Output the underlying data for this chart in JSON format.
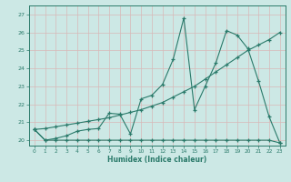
{
  "xlabel": "Humidex (Indice chaleur)",
  "bg_color": "#cce8e5",
  "grid_color": "#b8d8d5",
  "line_color": "#2a7a6a",
  "xlim": [
    -0.5,
    23.5
  ],
  "ylim": [
    19.7,
    27.5
  ],
  "xticks": [
    0,
    1,
    2,
    3,
    4,
    5,
    6,
    7,
    8,
    9,
    10,
    11,
    12,
    13,
    14,
    15,
    16,
    17,
    18,
    19,
    20,
    21,
    22,
    23
  ],
  "yticks": [
    20,
    21,
    22,
    23,
    24,
    25,
    26,
    27
  ],
  "s1_x": [
    0,
    1,
    2,
    3,
    4,
    5,
    6,
    7,
    8,
    9,
    10,
    11,
    12,
    13,
    14,
    15,
    16,
    17,
    18,
    19,
    20,
    21,
    22,
    23
  ],
  "s1_y": [
    20.6,
    20.0,
    20.0,
    20.0,
    20.0,
    20.0,
    20.0,
    20.0,
    20.0,
    20.0,
    20.0,
    20.0,
    20.0,
    20.0,
    20.0,
    20.0,
    20.0,
    20.0,
    20.0,
    20.0,
    20.0,
    20.0,
    20.0,
    19.85
  ],
  "s2_x": [
    0,
    1,
    2,
    3,
    4,
    5,
    6,
    7,
    8,
    9,
    10,
    11,
    12,
    13,
    14,
    15,
    16,
    17,
    18,
    19,
    20,
    21,
    22,
    23
  ],
  "s2_y": [
    20.6,
    20.65,
    20.75,
    20.85,
    20.95,
    21.05,
    21.15,
    21.25,
    21.4,
    21.55,
    21.7,
    21.9,
    22.1,
    22.4,
    22.7,
    23.0,
    23.4,
    23.8,
    24.2,
    24.6,
    25.0,
    25.3,
    25.6,
    26.0
  ],
  "s3_x": [
    0,
    1,
    2,
    3,
    4,
    5,
    6,
    7,
    8,
    9,
    10,
    11,
    12,
    13,
    14,
    15,
    16,
    17,
    18,
    19,
    20,
    21,
    22,
    23
  ],
  "s3_y": [
    20.6,
    20.0,
    20.1,
    20.25,
    20.5,
    20.6,
    20.65,
    21.5,
    21.45,
    20.35,
    22.3,
    22.5,
    23.1,
    24.5,
    26.8,
    21.7,
    23.0,
    24.3,
    26.1,
    25.85,
    25.1,
    23.3,
    21.3,
    19.85
  ]
}
